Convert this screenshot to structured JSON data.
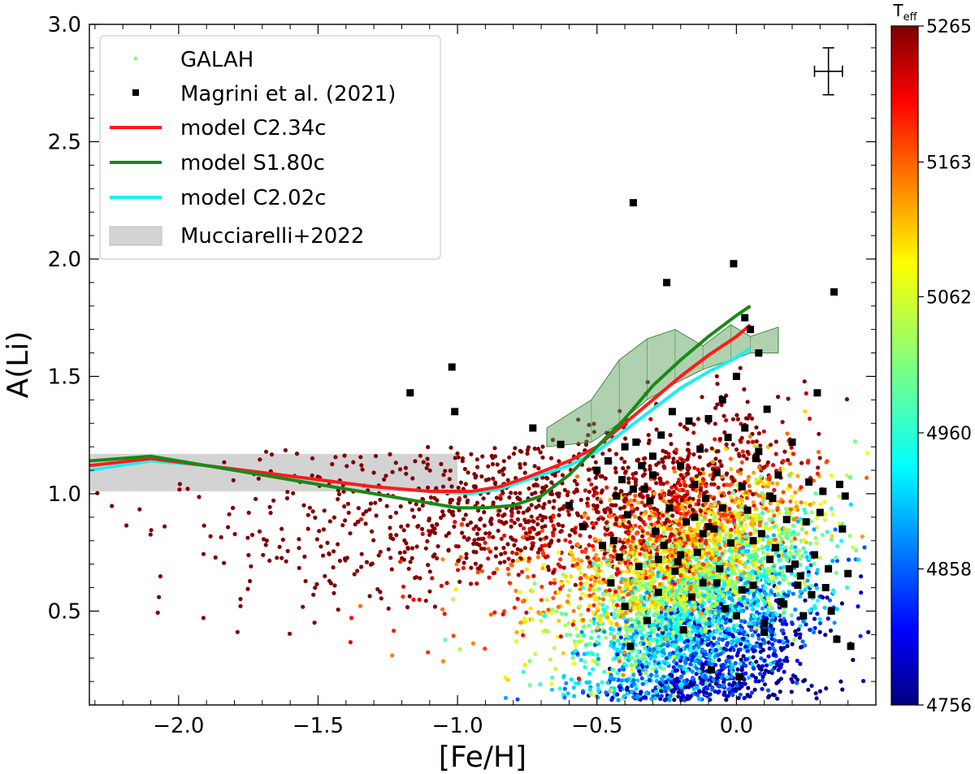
{
  "chart_data": {
    "type": "scatter",
    "xlabel": "[Fe/H]",
    "ylabel": "A(Li)",
    "xlim": [
      -2.32,
      0.5
    ],
    "ylim": [
      0.1,
      3.0
    ],
    "xticks": [
      -2.0,
      -1.5,
      -1.0,
      -0.5,
      0.0
    ],
    "xtick_labels": [
      "−2.0",
      "−1.5",
      "−1.0",
      "−0.5",
      "0.0"
    ],
    "yticks": [
      0.5,
      1.0,
      1.5,
      2.0,
      2.5,
      3.0
    ],
    "ytick_labels": [
      "0.5",
      "1.0",
      "1.5",
      "2.0",
      "2.5",
      "3.0"
    ],
    "colorbar": {
      "label_main": "T",
      "label_sub": "eff",
      "range": [
        4756,
        5265
      ],
      "ticks": [
        4756,
        4858,
        4960,
        5062,
        5163,
        5265
      ],
      "tick_labels": [
        "4756",
        "4858",
        "4960",
        "5062",
        "5163",
        "5265"
      ],
      "colormap": "jet"
    },
    "legend": {
      "placement": "top-left",
      "entries": [
        {
          "label": "GALAH",
          "marker": "point",
          "color": "#7cfc5a"
        },
        {
          "label": "Magrini et al. (2021)",
          "marker": "square",
          "color": "#000000"
        },
        {
          "label": "model C2.34c",
          "marker": "line",
          "color": "#ff1a1a"
        },
        {
          "label": "model S1.80c",
          "marker": "line",
          "color": "#178a17"
        },
        {
          "label": "model C2.02c",
          "marker": "line",
          "color": "#19f0f0"
        },
        {
          "label": "Mucciarelli+2022",
          "marker": "band",
          "color": "#d3d3d3"
        }
      ]
    },
    "error_bar": {
      "x": 0.33,
      "y": 2.8,
      "xerr": 0.05,
      "yerr": 0.1
    },
    "mucciarelli_band": {
      "x": [
        -2.32,
        -1.0
      ],
      "y": [
        1.01,
        1.17
      ],
      "color": "#d3d3d3"
    },
    "green_band": {
      "color": "#4f9a4f",
      "x": [
        -0.68,
        -0.52,
        -0.42,
        -0.32,
        -0.22,
        -0.12,
        -0.02,
        0.05,
        0.15
      ],
      "lower": [
        1.2,
        1.22,
        1.3,
        1.4,
        1.47,
        1.53,
        1.57,
        1.6,
        1.6
      ],
      "upper": [
        1.28,
        1.4,
        1.57,
        1.66,
        1.7,
        1.63,
        1.72,
        1.67,
        1.71
      ]
    },
    "series": [
      {
        "name": "model C2.34c",
        "color": "#ff1a1a",
        "x": [
          -2.32,
          -2.1,
          -1.9,
          -1.7,
          -1.5,
          -1.3,
          -1.1,
          -0.95,
          -0.85,
          -0.75,
          -0.6,
          -0.5,
          -0.4,
          -0.3,
          -0.2,
          -0.1,
          0.0,
          0.05
        ],
        "y": [
          1.12,
          1.15,
          1.12,
          1.09,
          1.06,
          1.03,
          1.01,
          1.01,
          1.03,
          1.07,
          1.14,
          1.2,
          1.3,
          1.4,
          1.5,
          1.59,
          1.67,
          1.72
        ]
      },
      {
        "name": "model S1.80c",
        "color": "#178a17",
        "x": [
          -2.32,
          -2.1,
          -1.9,
          -1.7,
          -1.5,
          -1.3,
          -1.1,
          -1.0,
          -0.9,
          -0.8,
          -0.7,
          -0.6,
          -0.5,
          -0.4,
          -0.3,
          -0.2,
          -0.1,
          0.0,
          0.05
        ],
        "y": [
          1.14,
          1.16,
          1.12,
          1.08,
          1.04,
          1.0,
          0.96,
          0.94,
          0.94,
          0.95,
          0.99,
          1.08,
          1.2,
          1.32,
          1.46,
          1.57,
          1.67,
          1.76,
          1.8
        ]
      },
      {
        "name": "model C2.02c",
        "color": "#19f0f0",
        "x": [
          -2.32,
          -2.1,
          -1.9,
          -1.7,
          -1.5,
          -1.3,
          -1.1,
          -0.95,
          -0.85,
          -0.75,
          -0.6,
          -0.5,
          -0.4,
          -0.3,
          -0.2,
          -0.1,
          0.0,
          0.05
        ],
        "y": [
          1.1,
          1.14,
          1.12,
          1.09,
          1.06,
          1.03,
          1.01,
          1.0,
          1.02,
          1.06,
          1.12,
          1.18,
          1.27,
          1.36,
          1.45,
          1.52,
          1.58,
          1.62
        ]
      }
    ],
    "magrini_points": {
      "color": "#000000",
      "x": [
        -1.17,
        -1.02,
        -1.01,
        -0.73,
        -0.63,
        -0.37,
        -0.25,
        -0.01,
        0.03,
        0.05,
        0.08,
        0.29,
        0.35,
        0.37,
        0.39,
        -0.6,
        -0.55,
        -0.5,
        -0.48,
        -0.46,
        -0.45,
        -0.43,
        -0.42,
        -0.41,
        -0.4,
        -0.39,
        -0.38,
        -0.36,
        -0.35,
        -0.33,
        -0.32,
        -0.3,
        -0.29,
        -0.28,
        -0.27,
        -0.26,
        -0.24,
        -0.23,
        -0.22,
        -0.2,
        -0.19,
        -0.18,
        -0.17,
        -0.16,
        -0.15,
        -0.14,
        -0.13,
        -0.12,
        -0.11,
        -0.1,
        -0.09,
        -0.08,
        -0.07,
        -0.06,
        -0.05,
        -0.04,
        -0.03,
        -0.02,
        0.0,
        0.01,
        0.02,
        0.04,
        0.06,
        0.07,
        0.09,
        0.1,
        0.11,
        0.12,
        0.13,
        0.15,
        0.16,
        0.18,
        0.2,
        0.22,
        0.24,
        0.26,
        0.28,
        0.3,
        0.31,
        0.33,
        0.34,
        0.36,
        0.38,
        0.4,
        -0.44,
        -0.34,
        -0.31,
        -0.21,
        -0.12,
        -0.05,
        0.02,
        0.08,
        0.14,
        0.19,
        0.25,
        0.27,
        -0.37,
        -0.28,
        -0.15,
        -0.07,
        0.0,
        0.06,
        0.12,
        0.17,
        0.23,
        -0.4,
        -0.3,
        -0.2,
        -0.1,
        0.03,
        0.1,
        0.21,
        0.32,
        0.41
      ],
      "y": [
        1.43,
        1.54,
        1.35,
        1.28,
        1.21,
        2.24,
        1.9,
        1.98,
        1.75,
        1.7,
        1.6,
        1.43,
        1.86,
        1.04,
        0.99,
        0.95,
        0.86,
        1.1,
        0.78,
        1.14,
        0.62,
        0.99,
        0.73,
        1.06,
        0.52,
        0.91,
        0.35,
        1.22,
        0.69,
        1.02,
        0.46,
        1.16,
        0.84,
        0.58,
        1.25,
        0.78,
        0.94,
        1.35,
        0.67,
        1.12,
        0.42,
        0.88,
        1.31,
        0.56,
        1.04,
        0.75,
        1.19,
        0.62,
        0.98,
        1.32,
        0.25,
        0.85,
        1.09,
        0.68,
        1.4,
        0.51,
        1.24,
        0.79,
        1.5,
        0.22,
        1.03,
        0.93,
        0.61,
        1.15,
        0.83,
        0.45,
        1.36,
        0.72,
        0.98,
        1.08,
        0.54,
        0.89,
        1.22,
        0.61,
        0.48,
        1.05,
        0.74,
        0.92,
        1.01,
        0.68,
        0.5,
        0.38,
        0.85,
        0.66,
        0.8,
        1.12,
        0.97,
        0.71,
        0.83,
        0.94,
        0.59,
        1.18,
        0.77,
        0.68,
        0.88,
        0.57,
        1.02,
        0.72,
        0.9,
        0.62,
        0.48,
        0.8,
        0.99,
        0.53,
        0.65,
        1.2,
        1.08,
        0.74,
        0.86,
        1.28,
        0.41,
        0.7,
        0.6,
        0.35
      ]
    }
  }
}
